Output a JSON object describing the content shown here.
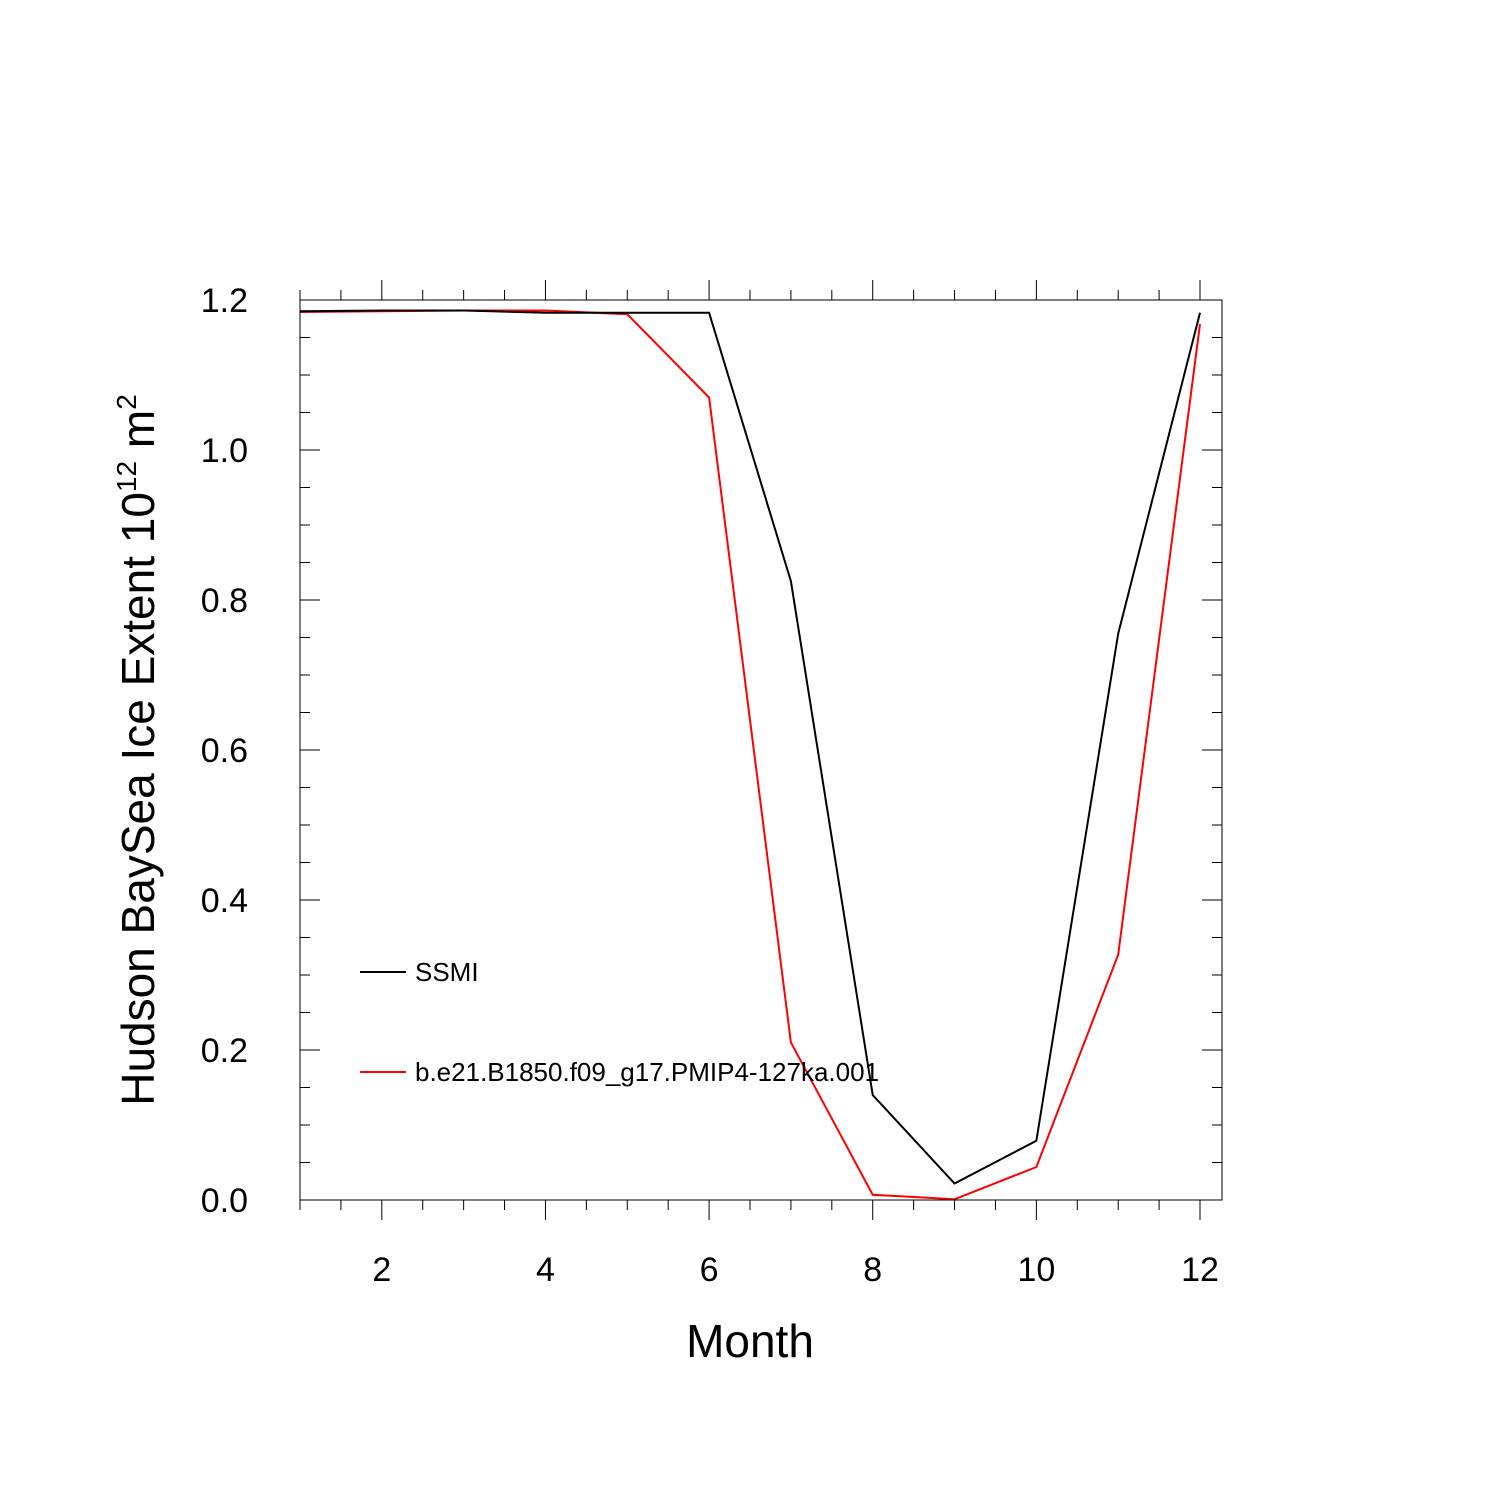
{
  "chart_data": {
    "type": "line",
    "title": "",
    "xlabel": "Month",
    "ylabel_main": "Hudson BaySea Ice Extent 10",
    "ylabel_exponent": "12",
    "ylabel_unit": " m",
    "ylabel_unit_exponent": "2",
    "xlim": [
      1,
      12
    ],
    "ylim": [
      0,
      1.2
    ],
    "xticks": [
      2,
      4,
      6,
      8,
      10,
      12
    ],
    "xtick_labels": [
      "2",
      "4",
      "6",
      "8",
      "10",
      "12"
    ],
    "yticks": [
      0,
      0.2,
      0.4,
      0.6,
      0.8,
      1.0,
      1.2
    ],
    "ytick_labels": [
      "0.0",
      "0.2",
      "0.4",
      "0.6",
      "0.8",
      "1.0",
      "1.2"
    ],
    "grid": false,
    "legend_position": "lower-left",
    "x": [
      1,
      2,
      3,
      4,
      5,
      6,
      7,
      8,
      9,
      10,
      11,
      12
    ],
    "series": [
      {
        "name": "SSMI",
        "color": "#000000",
        "values": [
          1.185,
          1.186,
          1.186,
          1.183,
          1.183,
          1.183,
          0.825,
          0.14,
          0.022,
          0.079,
          0.755,
          1.183
        ]
      },
      {
        "name": "b.e21.B1850.f09_g17.PMIP4-127ka.001",
        "color": "#ff0000",
        "values": [
          1.184,
          1.185,
          1.186,
          1.186,
          1.181,
          1.07,
          0.21,
          0.007,
          0.001,
          0.044,
          0.327,
          1.168
        ]
      }
    ]
  }
}
